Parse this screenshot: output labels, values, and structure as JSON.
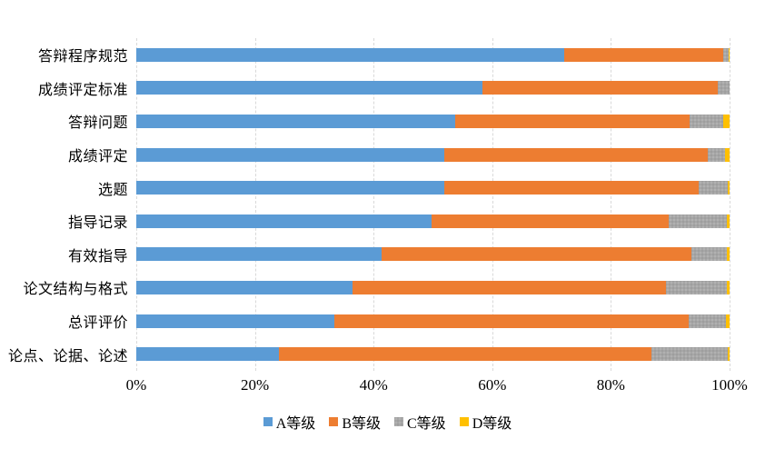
{
  "chart_data": {
    "type": "bar",
    "orientation": "horizontal",
    "stacked": true,
    "stack_total": 100,
    "title": "",
    "categories": [
      "答辩程序规范",
      "成绩评定标准",
      "答辩问题",
      "成绩评定",
      "选题",
      "指导记录",
      "有效指导",
      "论文结构与格式",
      "总评评价",
      "论点、论据、论述"
    ],
    "series": [
      {
        "name": "A等级",
        "color": "#5B9BD5",
        "pattern": "solid",
        "values": [
          72.2,
          58.3,
          53.8,
          51.9,
          51.9,
          49.8,
          41.4,
          36.5,
          33.4,
          24.0
        ]
      },
      {
        "name": "B等级",
        "color": "#ED7D31",
        "pattern": "solid",
        "values": [
          26.7,
          39.7,
          39.5,
          44.4,
          42.9,
          40.0,
          52.2,
          52.8,
          59.7,
          62.8
        ]
      },
      {
        "name": "C等级",
        "color": "#A6A6A6",
        "pattern": "dotted",
        "values": [
          0.9,
          2.0,
          5.7,
          2.9,
          4.9,
          9.8,
          5.9,
          10.3,
          6.3,
          12.9
        ]
      },
      {
        "name": "D等级",
        "color": "#FFC000",
        "pattern": "solid",
        "values": [
          0.2,
          0.0,
          1.0,
          0.8,
          0.3,
          0.4,
          0.5,
          0.4,
          0.6,
          0.3
        ]
      }
    ],
    "x_axis": {
      "min": 0,
      "max": 100,
      "tick_step": 20,
      "ticks": [
        "0%",
        "20%",
        "40%",
        "60%",
        "80%",
        "100%"
      ]
    },
    "legend": {
      "position": "bottom",
      "labels": [
        "A等级",
        "B等级",
        "C等级",
        "D等级"
      ]
    },
    "grid": {
      "vertical": true,
      "style": "dashed",
      "color": "#D9D9D9"
    }
  }
}
